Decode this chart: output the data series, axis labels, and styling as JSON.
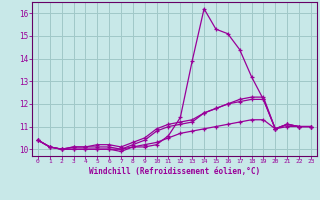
{
  "xlabel": "Windchill (Refroidissement éolien,°C)",
  "background_color": "#c8e8e8",
  "grid_color": "#a0c8c8",
  "line_color": "#990099",
  "spine_color": "#660066",
  "xlim": [
    -0.5,
    23.5
  ],
  "ylim": [
    9.7,
    16.5
  ],
  "xticks": [
    0,
    1,
    2,
    3,
    4,
    5,
    6,
    7,
    8,
    9,
    10,
    11,
    12,
    13,
    14,
    15,
    16,
    17,
    18,
    19,
    20,
    21,
    22,
    23
  ],
  "yticks": [
    10,
    11,
    12,
    13,
    14,
    15,
    16
  ],
  "line1_y": [
    10.4,
    10.1,
    10.0,
    10.0,
    10.0,
    10.0,
    10.0,
    9.9,
    10.1,
    10.1,
    10.2,
    10.6,
    11.4,
    13.9,
    16.2,
    15.3,
    15.1,
    14.4,
    13.2,
    12.2,
    10.9,
    11.1,
    11.0,
    11.0
  ],
  "line2_y": [
    10.4,
    10.1,
    10.0,
    10.1,
    10.1,
    10.1,
    10.1,
    10.0,
    10.2,
    10.4,
    10.8,
    11.0,
    11.1,
    11.2,
    11.6,
    11.8,
    12.0,
    12.1,
    12.2,
    12.2,
    10.9,
    11.1,
    11.0,
    11.0
  ],
  "line3_y": [
    10.4,
    10.1,
    10.0,
    10.1,
    10.1,
    10.2,
    10.2,
    10.1,
    10.3,
    10.5,
    10.9,
    11.1,
    11.2,
    11.3,
    11.6,
    11.8,
    12.0,
    12.2,
    12.3,
    12.3,
    10.9,
    11.1,
    11.0,
    11.0
  ],
  "line4_y": [
    10.4,
    10.1,
    10.0,
    10.0,
    10.0,
    10.0,
    10.0,
    10.0,
    10.1,
    10.2,
    10.3,
    10.5,
    10.7,
    10.8,
    10.9,
    11.0,
    11.1,
    11.2,
    11.3,
    11.3,
    10.9,
    11.0,
    11.0,
    11.0
  ]
}
